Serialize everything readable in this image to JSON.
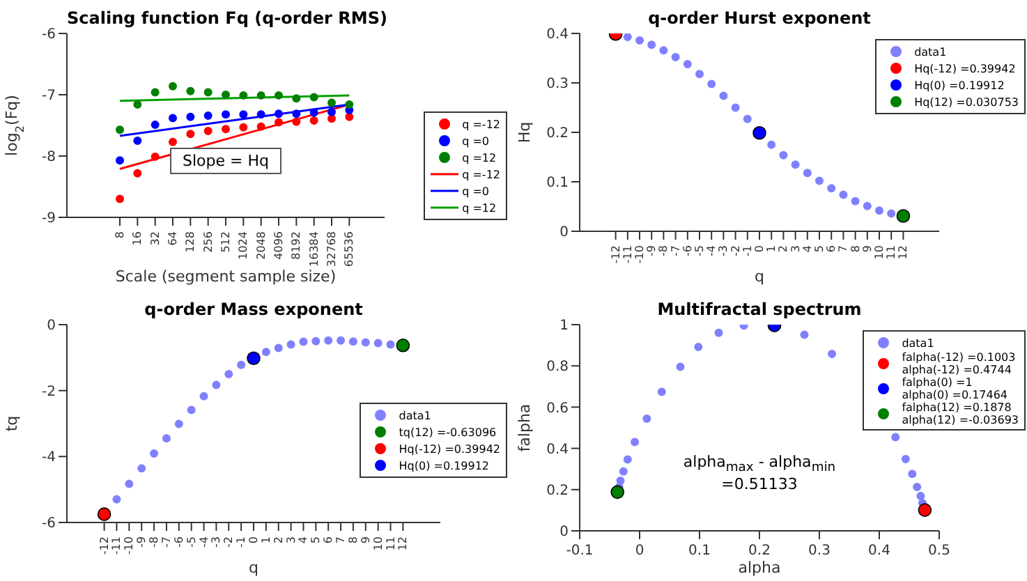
{
  "chart_data": [
    {
      "type": "scatter",
      "title": "Scaling function Fq (q-order RMS)",
      "xlabel": "Scale (segment sample size)",
      "ylabel": "log$_{2}$(Fq)",
      "log": "x",
      "xlim": [
        1,
        262144
      ],
      "xticks": [
        8,
        16,
        32,
        64,
        128,
        256,
        512,
        1024,
        2048,
        4096,
        8192,
        16384,
        32768,
        65536
      ],
      "ylim": [
        -9,
        -6
      ],
      "yticks": [
        -9,
        -8,
        -7,
        -6
      ],
      "legend": "right",
      "line_style": "solid",
      "annotations": [
        "Slope = Hq"
      ],
      "series": [
        {
          "name": "q =-12",
          "marker": "circle",
          "color": "#ff0000",
          "x": [
            8,
            16,
            32,
            64,
            128,
            256,
            512,
            1024,
            2048,
            4096,
            8192,
            16384,
            32768,
            65536
          ],
          "values": [
            -8.7,
            -8.28,
            -8.01,
            -7.77,
            -7.64,
            -7.59,
            -7.56,
            -7.53,
            -7.52,
            -7.45,
            -7.44,
            -7.42,
            -7.39,
            -7.36
          ]
        },
        {
          "name": "q =0",
          "marker": "circle",
          "color": "#0000ff",
          "x": [
            8,
            16,
            32,
            64,
            128,
            256,
            512,
            1024,
            2048,
            4096,
            8192,
            16384,
            32768,
            65536
          ],
          "values": [
            -8.07,
            -7.75,
            -7.49,
            -7.38,
            -7.36,
            -7.34,
            -7.32,
            -7.32,
            -7.32,
            -7.31,
            -7.31,
            -7.29,
            -7.28,
            -7.25
          ]
        },
        {
          "name": "q =12",
          "marker": "circle",
          "color": "#008000",
          "x": [
            8,
            16,
            32,
            64,
            128,
            256,
            512,
            1024,
            2048,
            4096,
            8192,
            16384,
            32768,
            65536
          ],
          "values": [
            -7.57,
            -7.16,
            -6.96,
            -6.86,
            -6.94,
            -6.96,
            -7.0,
            -7.01,
            -7.01,
            -7.01,
            -7.06,
            -7.04,
            -7.13,
            -7.16
          ]
        },
        {
          "name": "q =-12",
          "type": "line",
          "color": "#ff0000",
          "x": [
            8,
            65536
          ],
          "values": [
            -8.21,
            -7.16
          ]
        },
        {
          "name": "q =0",
          "type": "line",
          "color": "#0000ff",
          "x": [
            8,
            65536
          ],
          "values": [
            -7.67,
            -7.16
          ]
        },
        {
          "name": "q =12",
          "type": "line",
          "color": "#00a000",
          "x": [
            8,
            65536
          ],
          "values": [
            -7.1,
            -7.01
          ]
        }
      ]
    },
    {
      "type": "scatter",
      "title": "q-order Hurst exponent",
      "xlabel": "q",
      "ylabel": "Hq",
      "xlim": [
        -15,
        15
      ],
      "xticks": [
        -12,
        -11,
        -10,
        -9,
        -8,
        -7,
        -6,
        -5,
        -4,
        -3,
        -2,
        -1,
        0,
        1,
        2,
        3,
        4,
        5,
        6,
        7,
        8,
        9,
        10,
        11,
        12
      ],
      "ylim": [
        0,
        0.4
      ],
      "yticks": [
        0,
        0.1,
        0.2,
        0.3,
        0.4
      ],
      "legend": "top right",
      "marker": "circle",
      "series": [
        {
          "name": "data1",
          "color": "#8080ff",
          "x": [
            -11,
            -10,
            -9,
            -8,
            -7,
            -6,
            -5,
            -4,
            -3,
            -2,
            -1,
            1,
            2,
            3,
            4,
            5,
            6,
            7,
            8,
            9,
            10,
            11
          ],
          "values": [
            0.393,
            0.386,
            0.377,
            0.366,
            0.352,
            0.338,
            0.318,
            0.298,
            0.274,
            0.25,
            0.227,
            0.175,
            0.154,
            0.135,
            0.118,
            0.102,
            0.087,
            0.074,
            0.061,
            0.051,
            0.042,
            0.036
          ]
        },
        {
          "name": "Hq(-12) =0.39942",
          "color": "#ff0000",
          "x": [
            -12
          ],
          "values": [
            0.399
          ]
        },
        {
          "name": "Hq(0) =0.19912",
          "color": "#0000ff",
          "x": [
            0
          ],
          "values": [
            0.199
          ]
        },
        {
          "name": "Hq(12) =0.030753",
          "color": "#008000",
          "x": [
            12
          ],
          "values": [
            0.031
          ]
        }
      ]
    },
    {
      "type": "scatter",
      "title": "q-order Mass exponent",
      "xlabel": "q",
      "ylabel": "tq",
      "xlim": [
        -15,
        15
      ],
      "xticks": [
        -12,
        -11,
        -10,
        -9,
        -8,
        -7,
        -6,
        -5,
        -4,
        -3,
        -2,
        -1,
        0,
        1,
        2,
        3,
        4,
        5,
        6,
        7,
        8,
        9,
        10,
        11,
        12
      ],
      "ylim": [
        -6,
        0
      ],
      "yticks": [
        -6,
        -4,
        -2,
        0
      ],
      "legend": "right",
      "marker": "circle",
      "series": [
        {
          "name": "data1",
          "color": "#8080ff",
          "x": [
            -11,
            -10,
            -9,
            -8,
            -7,
            -6,
            -5,
            -4,
            -3,
            -2,
            -1,
            1,
            2,
            3,
            4,
            5,
            6,
            7,
            8,
            9,
            10,
            11
          ],
          "values": [
            -5.3,
            -4.83,
            -4.36,
            -3.91,
            -3.45,
            -3.01,
            -2.59,
            -2.17,
            -1.83,
            -1.5,
            -1.22,
            -0.83,
            -0.71,
            -0.6,
            -0.52,
            -0.5,
            -0.48,
            -0.48,
            -0.51,
            -0.54,
            -0.56,
            -0.6
          ]
        },
        {
          "name": "tq(12) =-0.63096",
          "color": "#008000",
          "x": [
            12
          ],
          "values": [
            -0.63
          ]
        },
        {
          "name": "Hq(-12) =0.39942",
          "color": "#ff0000",
          "x": [
            -12
          ],
          "values": [
            -5.75
          ]
        },
        {
          "name": "Hq(0) =0.19912",
          "color": "#0000ff",
          "x": [
            0
          ],
          "values": [
            -1.02
          ]
        }
      ]
    },
    {
      "type": "scatter",
      "title": "Multifractal spectrum",
      "xlabel": "alpha",
      "ylabel": "falpha",
      "xlim": [
        -0.1,
        0.5
      ],
      "xticks": [
        -0.1,
        0,
        0.1,
        0.2,
        0.3,
        0.4,
        0.5
      ],
      "ylim": [
        0,
        1
      ],
      "yticks": [
        0,
        0.2,
        0.4,
        0.6,
        0.8,
        1
      ],
      "legend": "top right",
      "marker": "circle",
      "annotations": [
        "alpha$_{max}$ - alpha$_{min}$",
        "=0.51133"
      ],
      "series": [
        {
          "name": "data1",
          "color": "#8080ff",
          "x": [
            -0.034,
            -0.032,
            -0.027,
            -0.02,
            -0.008,
            0.012,
            0.037,
            0.068,
            0.098,
            0.132,
            0.174,
            0.275,
            0.321,
            0.427,
            0.444,
            0.455,
            0.463,
            0.469,
            0.472
          ],
          "values": [
            0.213,
            0.243,
            0.288,
            0.346,
            0.431,
            0.544,
            0.674,
            0.796,
            0.892,
            0.96,
            0.996,
            0.951,
            0.858,
            0.454,
            0.348,
            0.276,
            0.213,
            0.169,
            0.135
          ]
        },
        {
          "name": "falpha(-12) =0.1003\nalpha(-12) =0.4744",
          "color": "#ff0000",
          "x": [
            0.476
          ],
          "values": [
            0.101
          ]
        },
        {
          "name": "falpha(0) =1\nalpha(0) =0.17464",
          "color": "#0000ff",
          "x": [
            0.225
          ],
          "values": [
            0.996
          ]
        },
        {
          "name": "falpha(12) =0.1878\nalpha(12) =-0.03693",
          "color": "#008000",
          "x": [
            -0.037
          ],
          "values": [
            0.188
          ]
        }
      ]
    }
  ]
}
